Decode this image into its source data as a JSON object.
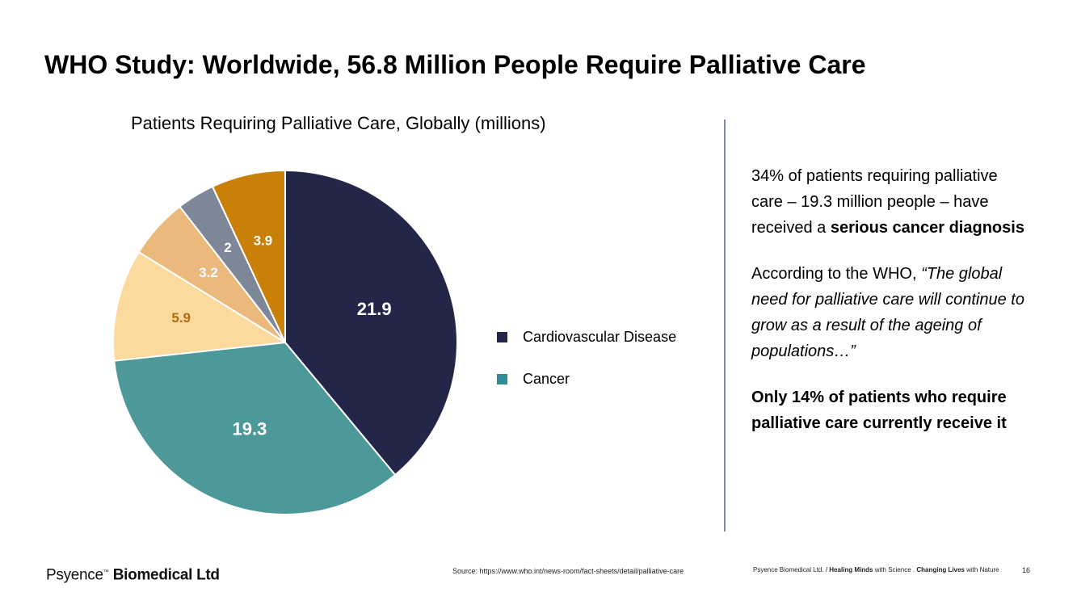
{
  "slide": {
    "title": "WHO Study: Worldwide, 56.8 Million People Require Palliative Care"
  },
  "chart_data": {
    "type": "pie",
    "title": "Patients Requiring Palliative Care, Globally (millions)",
    "start_angle_deg": 0,
    "direction": "clockwise",
    "slices": [
      {
        "label": "Cardiovascular Disease",
        "value": 21.9,
        "display": "21.9",
        "color": "#232549",
        "label_color": "#ffffff",
        "in_legend": true
      },
      {
        "label": "Cancer",
        "value": 19.3,
        "display": "19.3",
        "color": "#4d9899",
        "label_color": "#ffffff",
        "in_legend": true
      },
      {
        "label": "",
        "value": 5.9,
        "display": "5.9",
        "color": "#fcd99d",
        "label_color": "#b36b10",
        "in_legend": false
      },
      {
        "label": "",
        "value": 3.2,
        "display": "3.2",
        "color": "#ebb97b",
        "label_color": "#ffffff",
        "in_legend": false
      },
      {
        "label": "",
        "value": 2,
        "display": "2",
        "color": "#7d8798",
        "label_color": "#ffffff",
        "in_legend": false
      },
      {
        "label": "",
        "value": 3.9,
        "display": "3.9",
        "color": "#c98006",
        "label_color": "#ffffff",
        "in_legend": false
      }
    ],
    "legend_position": "right"
  },
  "legend": {
    "items": [
      {
        "label": "Cardiovascular Disease",
        "color": "#232549"
      },
      {
        "label": "Cancer",
        "color": "#2e8d95"
      }
    ]
  },
  "notes": {
    "p1_text": "34% of patients requiring palliative care – 19.3 million people – have received a ",
    "p1_bold": "serious cancer diagnosis",
    "p2_text": "According to the WHO, ",
    "p2_quote": "“The global need for palliative care will continue to grow as a result of the ageing of populations…”",
    "p3_bold": "Only 14% of patients who require palliative care currently receive it"
  },
  "footer": {
    "logo_part1": "Psyence",
    "logo_tm": "™",
    "logo_part2": " Biomedical Ltd",
    "source": "Source: https://www.who.int/news-room/fact-sheets/detail/palliative-care",
    "tagline_1": "Psyence Biomedical Ltd. / ",
    "tagline_2": "Healing Minds",
    "tagline_3": " with Science . ",
    "tagline_4": "Changing Lives",
    "tagline_5": " with Nature",
    "page": "16"
  }
}
